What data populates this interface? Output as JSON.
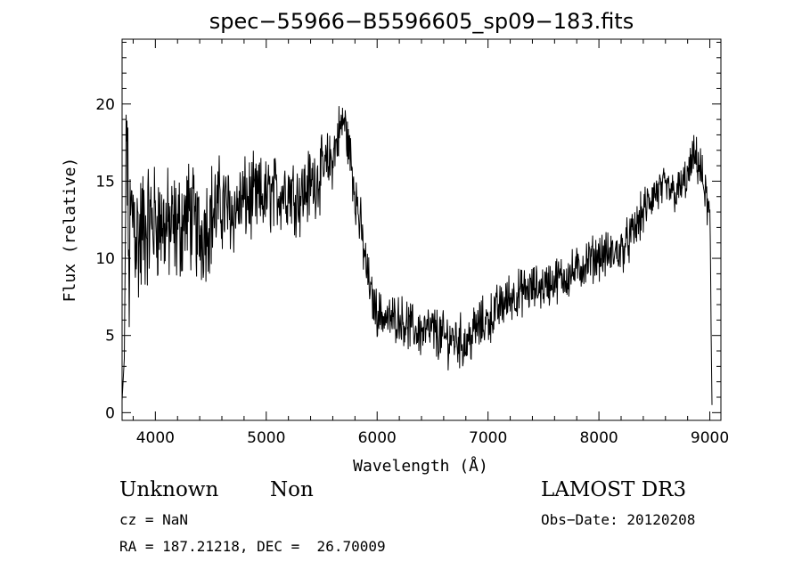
{
  "chart_data": {
    "type": "line",
    "title": "spec−55966−B5596605_sp09−183.fits",
    "xlabel": "Wavelength (Å)",
    "ylabel": "Flux (relative)",
    "xlim": [
      3700,
      9100
    ],
    "ylim": [
      -0.5,
      24.2
    ],
    "xticks": [
      4000,
      5000,
      6000,
      7000,
      8000,
      9000
    ],
    "yticks": [
      0,
      5,
      10,
      15,
      20
    ],
    "line_color": "#000000",
    "series": [
      {
        "x": [
          3700,
          3720,
          3740,
          3760,
          3780,
          3800,
          3850,
          3900,
          4000,
          4100,
          4200,
          4300,
          4400,
          4500,
          4600,
          4700,
          4800,
          4900,
          5000,
          5100,
          5200,
          5300,
          5400,
          5500,
          5600,
          5650,
          5700,
          5750,
          5800,
          5850,
          5900,
          5950,
          6000,
          6050,
          6100,
          6200,
          6300,
          6400,
          6500,
          6600,
          6700,
          6800,
          6900,
          7000,
          7100,
          7200,
          7300,
          7400,
          7500,
          7600,
          7700,
          7800,
          7900,
          8000,
          8100,
          8200,
          8300,
          8400,
          8500,
          8600,
          8700,
          8800,
          8850,
          8900,
          8950,
          9000,
          9020
        ],
        "y": [
          0.8,
          3.5,
          20.0,
          9.0,
          12.5,
          13.0,
          11.0,
          12.0,
          12.5,
          12.0,
          11.8,
          13.0,
          11.5,
          12.8,
          13.5,
          13.0,
          13.8,
          13.8,
          14.0,
          14.2,
          14.5,
          14.0,
          14.8,
          15.5,
          16.5,
          18.0,
          19.0,
          17.0,
          14.5,
          12.0,
          9.5,
          7.5,
          6.5,
          6.3,
          6.0,
          6.2,
          5.5,
          5.2,
          5.3,
          4.8,
          4.8,
          4.5,
          5.5,
          6.0,
          6.8,
          7.5,
          7.8,
          8.0,
          8.2,
          8.6,
          8.8,
          9.2,
          9.8,
          10.2,
          10.2,
          10.5,
          11.5,
          13.0,
          14.2,
          14.5,
          14.2,
          15.2,
          16.5,
          16.2,
          14.5,
          12.5,
          0.5
        ],
        "noise": [
          0,
          0,
          3,
          5,
          4,
          4,
          4,
          3.5,
          3,
          3,
          3,
          2.8,
          2.8,
          2.8,
          2.5,
          2.2,
          2.2,
          2.2,
          2,
          2,
          2,
          2,
          2,
          1.8,
          1.6,
          1.5,
          1.4,
          1.4,
          1.6,
          1.5,
          1.3,
          1.2,
          1.2,
          1.2,
          1.2,
          1.2,
          1.3,
          1.3,
          1.4,
          1.4,
          1.4,
          1.4,
          1.4,
          1.3,
          1.3,
          1.3,
          1.2,
          1.2,
          1.2,
          1.2,
          1.2,
          1.2,
          1.2,
          1.2,
          1.2,
          1.2,
          1.2,
          1.2,
          1.2,
          1.1,
          1.1,
          1.1,
          1.1,
          1.2,
          1.2,
          1.5,
          0
        ]
      }
    ]
  },
  "info": {
    "class_label": "Unknown",
    "subclass_label": "Non",
    "survey": "LAMOST DR3",
    "cz": "cz = NaN",
    "obs_date": "Obs−Date: 20120208",
    "coords": "RA = 187.21218, DEC =  26.70009"
  }
}
